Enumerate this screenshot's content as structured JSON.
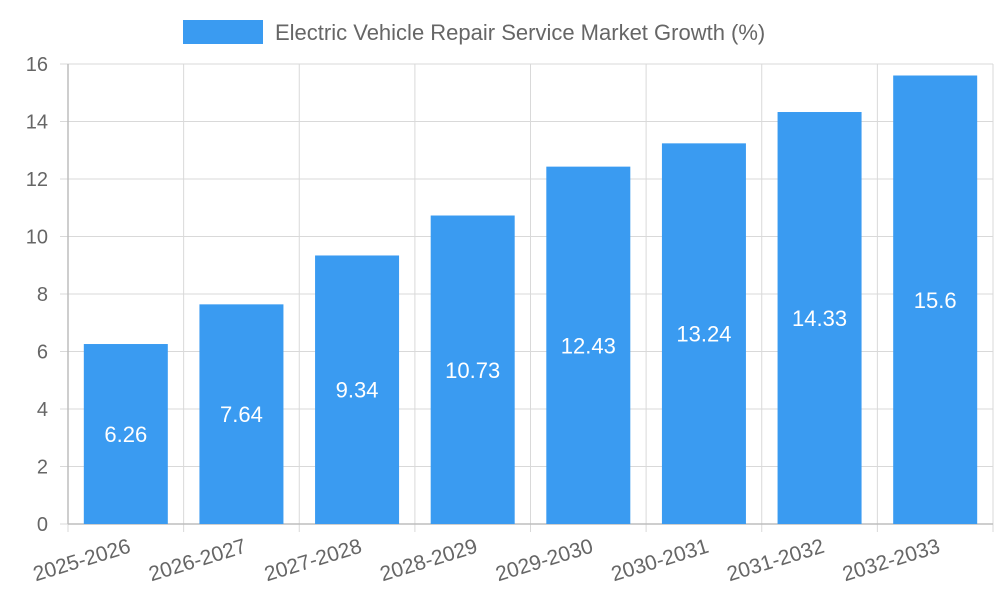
{
  "chart_data": {
    "type": "bar",
    "categories": [
      "2025-2026",
      "2026-2027",
      "2027-2028",
      "2028-2029",
      "2029-2030",
      "2030-2031",
      "2031-2032",
      "2032-2033"
    ],
    "series": [
      {
        "name": "Electric Vehicle Repair Service Market Growth (%)",
        "values": [
          6.26,
          7.64,
          9.34,
          10.73,
          12.43,
          13.24,
          14.33,
          15.6
        ],
        "color": "#3a9bf1"
      }
    ],
    "data_labels": [
      "6.26",
      "7.64",
      "9.34",
      "10.73",
      "12.43",
      "13.24",
      "14.33",
      "15.6"
    ],
    "ylim": [
      0,
      16
    ],
    "yticks": [
      "0",
      "2",
      "4",
      "6",
      "8",
      "10",
      "12",
      "14",
      "16"
    ],
    "legend_position": "top-center",
    "grid": true,
    "xlabel": "",
    "ylabel": ""
  },
  "colors": {
    "bar": "#3a9bf1",
    "grid": "#d9d9d9",
    "axis": "#bdbdbd",
    "tick_text": "#666666",
    "data_label": "#ffffff",
    "legend_text": "#666666"
  }
}
